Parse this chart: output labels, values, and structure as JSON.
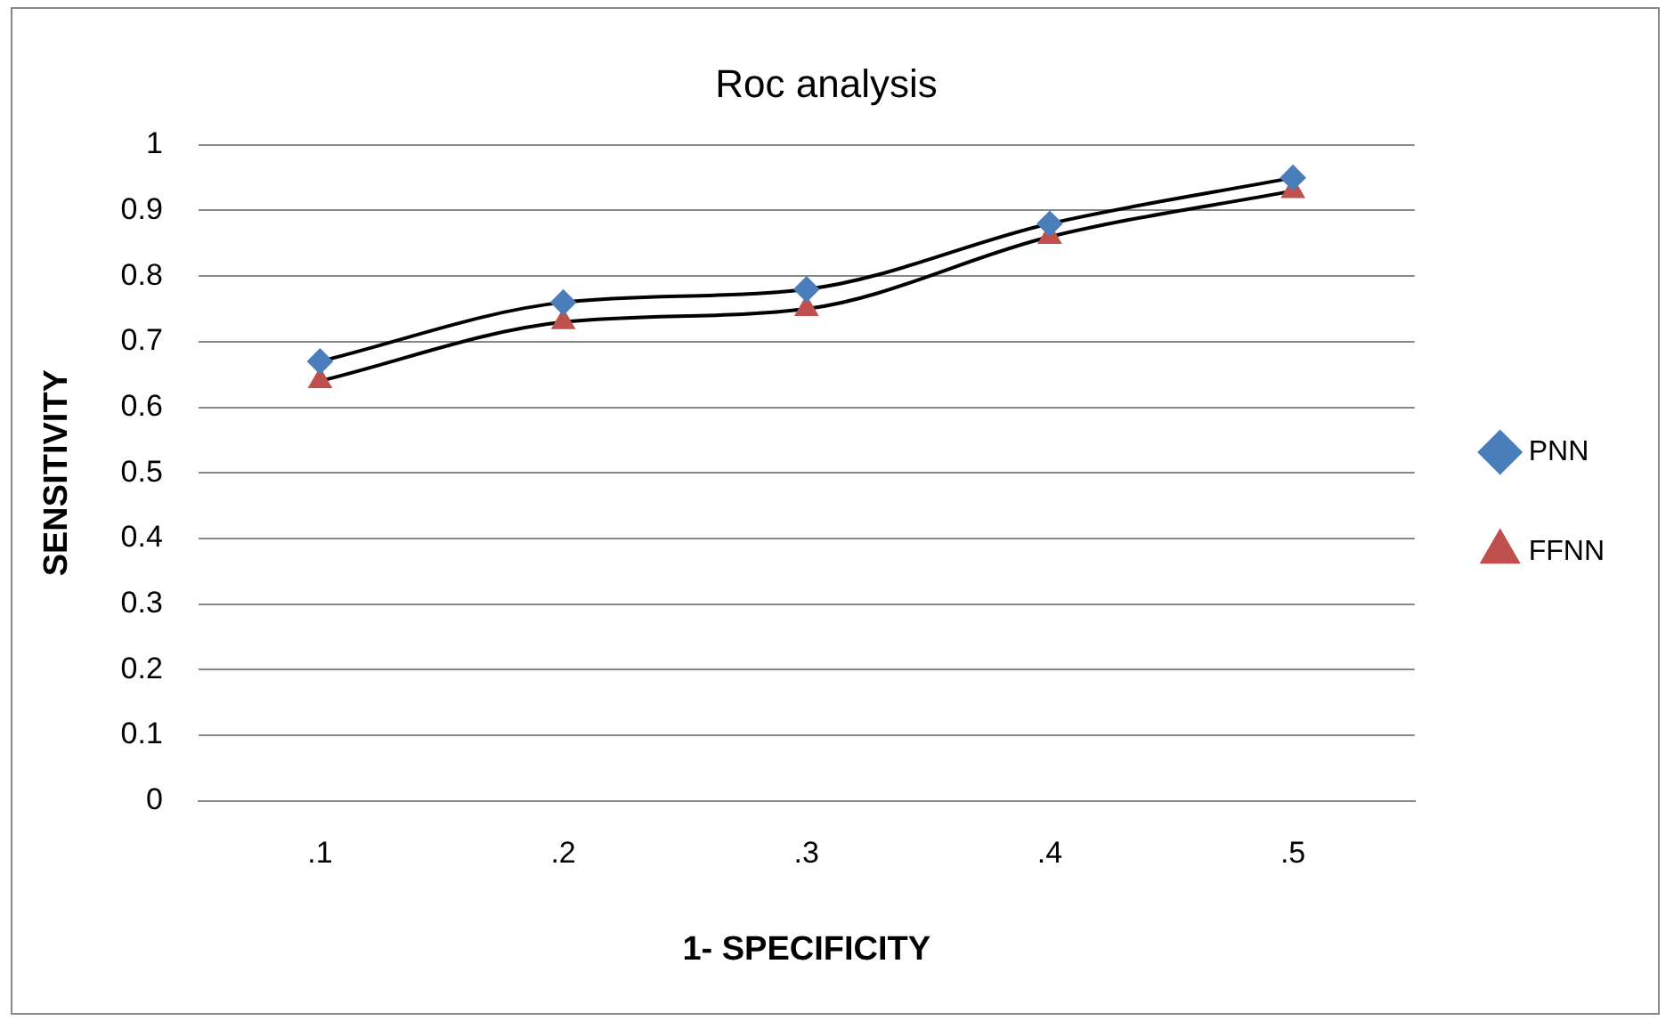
{
  "chart_data": {
    "type": "line",
    "title": "Roc analysis",
    "xlabel": "1- SPECIFICITY",
    "ylabel": "SENSITIVITY",
    "categories": [
      ".1",
      ".2",
      ".3",
      ".4",
      ".5"
    ],
    "series": [
      {
        "name": "PNN",
        "color": "#4a7ebb",
        "marker": "diamond",
        "values": [
          0.67,
          0.76,
          0.78,
          0.88,
          0.95
        ]
      },
      {
        "name": "FFNN",
        "color": "#c0504d",
        "marker": "triangle",
        "values": [
          0.64,
          0.73,
          0.75,
          0.86,
          0.93
        ]
      }
    ],
    "ylim": [
      0,
      1
    ],
    "yticks": [
      0,
      0.1,
      0.2,
      0.3,
      0.4,
      0.5,
      0.6,
      0.7,
      0.8,
      0.9,
      1
    ],
    "grid": "y",
    "legend": "right"
  }
}
